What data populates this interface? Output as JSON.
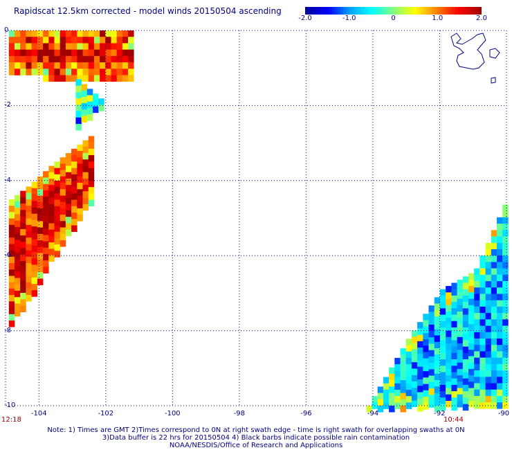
{
  "title": "Rapidscat 12.5km corrected - model winds 20150504 ascending",
  "colorbar": {
    "stops": [
      "#0000a0",
      "#0000ff",
      "#00a0ff",
      "#00ffff",
      "#80ff80",
      "#ffff00",
      "#ff8000",
      "#ff0000",
      "#a00000"
    ],
    "tick_labels": [
      "-2.0",
      "-1.0",
      "0",
      "1.0",
      "2.0"
    ],
    "min": -2.0,
    "max": 2.0
  },
  "axes": {
    "y_labels": [
      "0",
      "-2",
      "-4",
      "-6",
      "-8",
      "-10"
    ],
    "x_labels": [
      "-104",
      "-102",
      "-100",
      "-98",
      "-96",
      "-94",
      "-92",
      "-90"
    ],
    "grid_color": "#000080"
  },
  "times": {
    "left": "12:18",
    "right": "10:44"
  },
  "notes": [
    "Note: 1) Times are GMT 2)Times correspond to 0N at right swath edge - time is right swath for overlapping swaths at 0N",
    "3)Data buffer is 22 hrs for 20150504 4) Black barbs indicate possible rain contamination",
    "NOAA/NESDIS/Office of Research and Applications"
  ],
  "chart_data": {
    "type": "heatmap",
    "title": "Rapidscat 12.5km corrected - model winds 20150504 ascending",
    "xlim": [
      -105,
      -90
    ],
    "ylim": [
      -10,
      0
    ],
    "value_range": [
      -2.0,
      2.0
    ],
    "grid": true,
    "swaths": [
      {
        "lon": [
          -104.9,
          -103.9,
          -102.9,
          -102.0,
          -101.2
        ],
        "lat_top": [
          0.0,
          0.0,
          0.0,
          0.0,
          0.0
        ],
        "lat_bottom": [
          -1.1,
          -1.2,
          -1.2,
          -1.2,
          -1.2
        ],
        "value": 1.7
      },
      {
        "lon": [
          -104.9,
          -104.3,
          -103.7,
          -103.1,
          -102.5
        ],
        "lat_top": [
          -4.5,
          -4.1,
          -3.6,
          -3.2,
          -2.8
        ],
        "lat_bottom": [
          -7.8,
          -7.1,
          -6.1,
          -5.3,
          -4.5
        ],
        "value": 1.5
      },
      {
        "lon": [
          -102.9,
          -102.5,
          -102.1
        ],
        "lat_top": [
          -1.3,
          -1.6,
          -1.9
        ],
        "lat_bottom": [
          -2.6,
          -2.2,
          -2.1
        ],
        "value": 0.2
      },
      {
        "lon": [
          -94.2,
          -93.0,
          -92.0,
          -91.0,
          -90.0
        ],
        "lat_top": [
          -10.0,
          -8.2,
          -6.9,
          -6.4,
          -4.4
        ],
        "lat_bottom": [
          -10.0,
          -10.0,
          -10.0,
          -10.0,
          -10.0
        ],
        "value": -0.8
      }
    ]
  }
}
